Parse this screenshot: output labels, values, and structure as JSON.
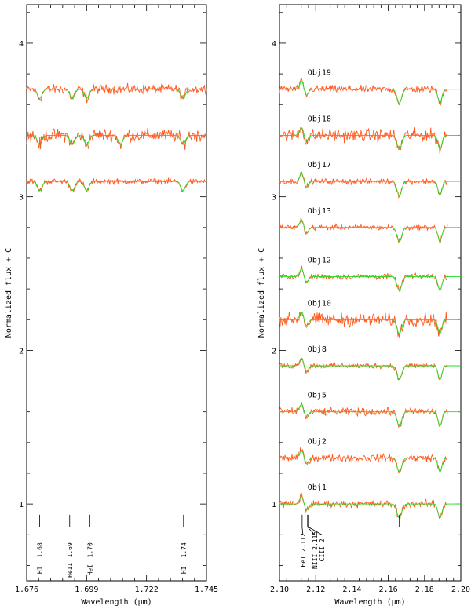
{
  "chart_data": [
    {
      "panel": "left",
      "type": "line",
      "xlabel": "Wavelength (μm)",
      "ylabel": "Normalized flux + C",
      "xlim": [
        1.676,
        1.745
      ],
      "ylim": [
        0.5,
        4.25
      ],
      "xticks": [
        "1.676",
        "1.699",
        "1.722",
        "1.745"
      ],
      "yticks": [
        "1",
        "2",
        "3",
        "4"
      ],
      "series": [
        {
          "offset": 3.7,
          "absorptions": [
            1.681,
            1.6935,
            1.699,
            1.736
          ],
          "noise": 0.025
        },
        {
          "offset": 3.4,
          "absorptions": [
            1.681,
            1.6935,
            1.699,
            1.712,
            1.736
          ],
          "noise": 0.035
        },
        {
          "offset": 3.1,
          "absorptions": [
            1.681,
            1.6935,
            1.699,
            1.736
          ],
          "noise": 0.015
        }
      ],
      "line_markers": [
        {
          "x": 1.681,
          "labels": [
            "1.68",
            "HI"
          ]
        },
        {
          "x": 1.6925,
          "labels": [
            "1.69",
            "HeII"
          ]
        },
        {
          "x": 1.7002,
          "labels": [
            "1.70",
            "HeI"
          ]
        },
        {
          "x": 1.7362,
          "labels": [
            "1.74",
            "HI"
          ]
        }
      ]
    },
    {
      "panel": "right",
      "type": "line",
      "xlabel": "Wavelength (μm)",
      "ylabel": "Normalized flux + C",
      "xlim": [
        2.1,
        2.2
      ],
      "ylim": [
        0.5,
        4.25
      ],
      "xticks": [
        "2.10",
        "2.12",
        "2.14",
        "2.16",
        "2.18",
        "2.20"
      ],
      "yticks": [
        "1",
        "2",
        "3",
        "4"
      ],
      "series": [
        {
          "name": "Obj19",
          "offset": 3.7,
          "noise": 0.02
        },
        {
          "name": "Obj18",
          "offset": 3.4,
          "noise": 0.035
        },
        {
          "name": "Obj17",
          "offset": 3.1,
          "noise": 0.015
        },
        {
          "name": "Obj13",
          "offset": 2.8,
          "noise": 0.015
        },
        {
          "name": "Obj12",
          "offset": 2.48,
          "noise": 0.015
        },
        {
          "name": "Obj10",
          "offset": 2.2,
          "noise": 0.035
        },
        {
          "name": "Obj8",
          "offset": 1.9,
          "noise": 0.015
        },
        {
          "name": "Obj5",
          "offset": 1.6,
          "noise": 0.02
        },
        {
          "name": "Obj2",
          "offset": 1.3,
          "noise": 0.02
        },
        {
          "name": "Obj1",
          "offset": 1.0,
          "noise": 0.02
        }
      ],
      "line_markers": [
        {
          "x": 2.1125,
          "labels": [
            "HeI",
            "2.112"
          ]
        },
        {
          "x": 2.1155,
          "labels": [
            "NIII",
            "2.115"
          ]
        },
        {
          "x": 2.116,
          "labels": [
            "CIII",
            "2"
          ]
        },
        {
          "x": 2.1661,
          "labels": []
        },
        {
          "x": 2.1885,
          "labels": []
        }
      ]
    }
  ]
}
